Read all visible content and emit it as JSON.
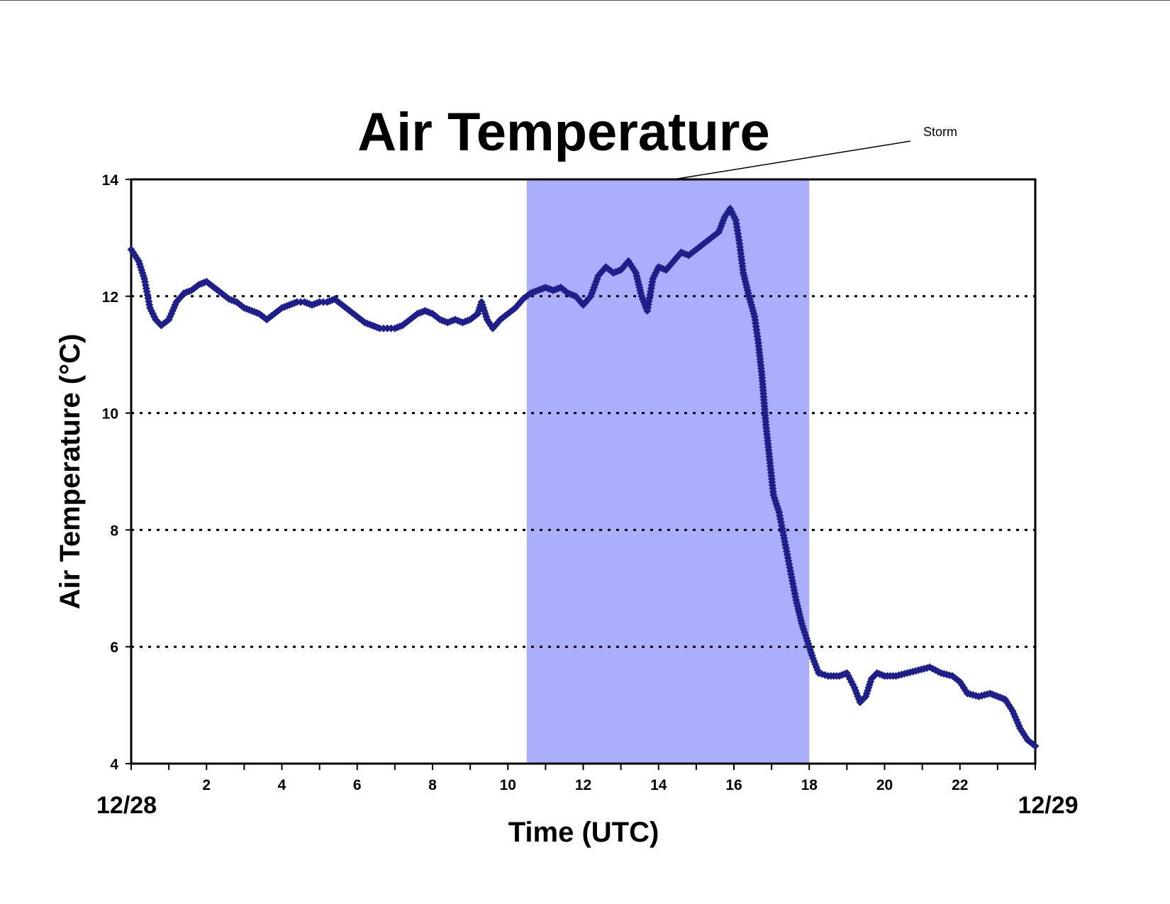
{
  "chart_data": {
    "type": "scatter",
    "title": "Air Temperature",
    "xlabel": "Time (UTC)",
    "ylabel": "Air Temperature (°C)",
    "xlim": [
      0,
      24
    ],
    "ylim": [
      4,
      14
    ],
    "x_ticks": [
      2,
      4,
      6,
      8,
      10,
      12,
      14,
      16,
      18,
      20,
      22
    ],
    "y_ticks": [
      4,
      6,
      8,
      10,
      12,
      14
    ],
    "date_labels": {
      "start": "12/28",
      "end": "12/29"
    },
    "grid": "horizontal dotted",
    "colors": {
      "series": "#1f1f8a",
      "shade": "#aaaefc",
      "grid": "#000000"
    },
    "annotation": {
      "text": "Storm",
      "x_start": 10.5,
      "x_end": 18.0
    },
    "series": [
      {
        "marker": "diamond",
        "points": [
          [
            0.0,
            12.8
          ],
          [
            0.2,
            12.6
          ],
          [
            0.35,
            12.3
          ],
          [
            0.5,
            11.8
          ],
          [
            0.65,
            11.6
          ],
          [
            0.8,
            11.5
          ],
          [
            1.0,
            11.6
          ],
          [
            1.2,
            11.9
          ],
          [
            1.4,
            12.05
          ],
          [
            1.6,
            12.1
          ],
          [
            1.8,
            12.2
          ],
          [
            2.0,
            12.25
          ],
          [
            2.2,
            12.15
          ],
          [
            2.4,
            12.05
          ],
          [
            2.6,
            11.95
          ],
          [
            2.8,
            11.9
          ],
          [
            3.0,
            11.8
          ],
          [
            3.2,
            11.75
          ],
          [
            3.4,
            11.7
          ],
          [
            3.6,
            11.6
          ],
          [
            3.8,
            11.7
          ],
          [
            4.0,
            11.8
          ],
          [
            4.2,
            11.85
          ],
          [
            4.4,
            11.9
          ],
          [
            4.6,
            11.9
          ],
          [
            4.8,
            11.85
          ],
          [
            5.0,
            11.9
          ],
          [
            5.2,
            11.9
          ],
          [
            5.4,
            11.95
          ],
          [
            5.6,
            11.85
          ],
          [
            5.8,
            11.75
          ],
          [
            6.0,
            11.65
          ],
          [
            6.2,
            11.55
          ],
          [
            6.4,
            11.5
          ],
          [
            6.6,
            11.45
          ],
          [
            6.8,
            11.45
          ],
          [
            7.0,
            11.45
          ],
          [
            7.2,
            11.5
          ],
          [
            7.4,
            11.6
          ],
          [
            7.6,
            11.7
          ],
          [
            7.8,
            11.75
          ],
          [
            8.0,
            11.7
          ],
          [
            8.2,
            11.6
          ],
          [
            8.4,
            11.55
          ],
          [
            8.6,
            11.6
          ],
          [
            8.8,
            11.55
          ],
          [
            9.0,
            11.6
          ],
          [
            9.2,
            11.7
          ],
          [
            9.3,
            11.9
          ],
          [
            9.45,
            11.6
          ],
          [
            9.6,
            11.45
          ],
          [
            9.8,
            11.6
          ],
          [
            10.0,
            11.7
          ],
          [
            10.2,
            11.8
          ],
          [
            10.4,
            11.95
          ],
          [
            10.6,
            12.05
          ],
          [
            10.8,
            12.1
          ],
          [
            11.0,
            12.15
          ],
          [
            11.2,
            12.1
          ],
          [
            11.4,
            12.15
          ],
          [
            11.6,
            12.05
          ],
          [
            11.8,
            12.0
          ],
          [
            12.0,
            11.85
          ],
          [
            12.2,
            12.0
          ],
          [
            12.4,
            12.35
          ],
          [
            12.6,
            12.5
          ],
          [
            12.8,
            12.4
          ],
          [
            13.0,
            12.45
          ],
          [
            13.2,
            12.6
          ],
          [
            13.4,
            12.4
          ],
          [
            13.55,
            12.0
          ],
          [
            13.7,
            11.75
          ],
          [
            13.85,
            12.3
          ],
          [
            14.0,
            12.5
          ],
          [
            14.2,
            12.45
          ],
          [
            14.4,
            12.6
          ],
          [
            14.6,
            12.75
          ],
          [
            14.8,
            12.7
          ],
          [
            15.0,
            12.8
          ],
          [
            15.2,
            12.9
          ],
          [
            15.4,
            13.0
          ],
          [
            15.6,
            13.1
          ],
          [
            15.75,
            13.35
          ],
          [
            15.9,
            13.5
          ],
          [
            16.05,
            13.3
          ],
          [
            16.15,
            12.9
          ],
          [
            16.25,
            12.4
          ],
          [
            16.4,
            12.0
          ],
          [
            16.55,
            11.65
          ],
          [
            16.65,
            11.2
          ],
          [
            16.75,
            10.6
          ],
          [
            16.85,
            9.8
          ],
          [
            16.95,
            9.2
          ],
          [
            17.05,
            8.6
          ],
          [
            17.2,
            8.3
          ],
          [
            17.35,
            7.8
          ],
          [
            17.5,
            7.3
          ],
          [
            17.65,
            6.8
          ],
          [
            17.8,
            6.4
          ],
          [
            17.95,
            6.1
          ],
          [
            18.1,
            5.8
          ],
          [
            18.25,
            5.55
          ],
          [
            18.5,
            5.5
          ],
          [
            18.8,
            5.5
          ],
          [
            19.0,
            5.55
          ],
          [
            19.2,
            5.3
          ],
          [
            19.35,
            5.05
          ],
          [
            19.5,
            5.15
          ],
          [
            19.65,
            5.45
          ],
          [
            19.8,
            5.55
          ],
          [
            20.0,
            5.5
          ],
          [
            20.3,
            5.5
          ],
          [
            20.6,
            5.55
          ],
          [
            20.9,
            5.6
          ],
          [
            21.2,
            5.65
          ],
          [
            21.5,
            5.55
          ],
          [
            21.8,
            5.5
          ],
          [
            22.0,
            5.4
          ],
          [
            22.2,
            5.2
          ],
          [
            22.5,
            5.15
          ],
          [
            22.8,
            5.2
          ],
          [
            23.0,
            5.15
          ],
          [
            23.2,
            5.1
          ],
          [
            23.4,
            4.9
          ],
          [
            23.6,
            4.6
          ],
          [
            23.8,
            4.4
          ],
          [
            24.0,
            4.3
          ]
        ]
      }
    ]
  }
}
